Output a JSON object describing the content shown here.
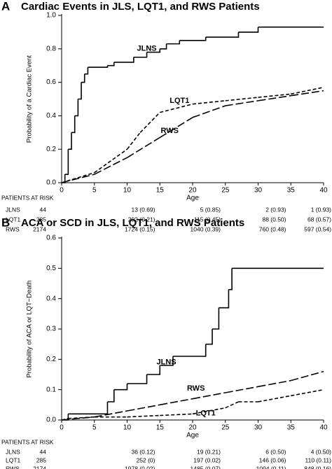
{
  "chart_data": [
    {
      "type": "line",
      "panel": "A",
      "title": "Cardiac Events in JLS, LQT1, and RWS Patients",
      "x_label": "Age",
      "y_label": "Probability of a Cardiac Event",
      "xlim": [
        0,
        40
      ],
      "xticks": [
        0,
        5,
        10,
        15,
        20,
        25,
        30,
        35,
        40
      ],
      "ylim": [
        0,
        1
      ],
      "yticks": [
        {
          "value": 0,
          "label": "0.0"
        },
        {
          "value": 0.2,
          "label": "0.2"
        },
        {
          "value": 0.4,
          "label": "0.4"
        },
        {
          "value": 0.6,
          "label": "0.6"
        },
        {
          "value": 0.8,
          "label": "0.8"
        },
        {
          "value": 1,
          "label": "1.0"
        }
      ],
      "series": [
        {
          "name": "JLNS",
          "color": "#000000",
          "line_style": "solid",
          "step": true,
          "x": [
            0,
            0.5,
            1,
            1.5,
            2,
            2.5,
            3,
            3.5,
            4,
            7,
            8,
            11,
            13,
            15,
            16,
            18,
            22,
            27,
            30,
            40
          ],
          "values": [
            0,
            0.05,
            0.2,
            0.3,
            0.4,
            0.5,
            0.6,
            0.65,
            0.69,
            0.7,
            0.72,
            0.75,
            0.78,
            0.8,
            0.83,
            0.85,
            0.87,
            0.9,
            0.93,
            0.93
          ]
        },
        {
          "name": "LQT1",
          "color": "#000000",
          "line_style": "dashed",
          "step": false,
          "x": [
            0,
            5,
            10,
            12,
            15,
            20,
            25,
            30,
            35,
            40
          ],
          "values": [
            0,
            0.06,
            0.2,
            0.3,
            0.42,
            0.47,
            0.49,
            0.51,
            0.53,
            0.57
          ]
        },
        {
          "name": "RWS",
          "color": "#000000",
          "line_style": "long-dashed",
          "step": false,
          "x": [
            0,
            5,
            10,
            15,
            20,
            25,
            30,
            35,
            40
          ],
          "values": [
            0,
            0.05,
            0.15,
            0.27,
            0.39,
            0.46,
            0.49,
            0.52,
            0.55
          ]
        }
      ],
      "risk_table": {
        "title": "PATIENTS AT RISK",
        "rows": [
          {
            "name": "JLNS",
            "n": 44,
            "entries": [
              "13 (0.69)",
              "5 (0.85)",
              "2 (0.93)",
              "1 (0.93)"
            ]
          },
          {
            "name": "LQT1",
            "n": 285,
            "entries": [
              "202 (0.21)",
              "115 (0.45)",
              "88 (0.50)",
              "68 (0.57)"
            ]
          },
          {
            "name": "RWS",
            "n": 2174,
            "entries": [
              "1724 (0.15)",
              "1040 (0.39)",
              "760 (0.48)",
              "597 (0.54)"
            ]
          }
        ]
      }
    },
    {
      "type": "line",
      "panel": "B",
      "title": "ACA or SCD in JLS, LQT1, and RWS Patients",
      "x_label": "Age",
      "y_label": "Probability of ACA or LQT−Death",
      "xlim": [
        0,
        40
      ],
      "xticks": [
        0,
        5,
        10,
        15,
        20,
        25,
        30,
        35,
        40
      ],
      "ylim": [
        0,
        0.6
      ],
      "yticks": [
        {
          "value": 0,
          "label": "0.0"
        },
        0.1,
        0.2,
        0.3,
        0.4,
        0.5,
        0.6
      ],
      "series": [
        {
          "name": "JLNS",
          "color": "#000000",
          "line_style": "solid",
          "step": true,
          "x": [
            0,
            1,
            7,
            8,
            10,
            13,
            15,
            17,
            22,
            23,
            24,
            25.5,
            26,
            40
          ],
          "values": [
            0,
            0.02,
            0.06,
            0.1,
            0.12,
            0.15,
            0.18,
            0.21,
            0.25,
            0.3,
            0.37,
            0.43,
            0.5,
            0.5
          ]
        },
        {
          "name": "RWS",
          "color": "#000000",
          "line_style": "long-dashed",
          "step": false,
          "x": [
            0,
            5,
            10,
            15,
            20,
            25,
            30,
            35,
            40
          ],
          "values": [
            0,
            0.01,
            0.03,
            0.05,
            0.07,
            0.09,
            0.11,
            0.13,
            0.16
          ]
        },
        {
          "name": "LQT1",
          "color": "#000000",
          "line_style": "dashed",
          "step": false,
          "x": [
            0,
            1,
            5,
            10,
            15,
            20,
            25,
            27,
            30,
            35,
            40
          ],
          "values": [
            0,
            0.005,
            0.01,
            0.01,
            0.015,
            0.02,
            0.04,
            0.06,
            0.06,
            0.08,
            0.1
          ]
        }
      ],
      "risk_table": {
        "title": "PATIENTS AT RISK",
        "rows": [
          {
            "name": "JLNS",
            "n": 44,
            "entries": [
              "36 (0.12)",
              "19 (0.21)",
              "6 (0.50)",
              "4 (0.50)"
            ]
          },
          {
            "name": "LQT1",
            "n": 285,
            "entries": [
              "252 (0)",
              "197 (0.02)",
              "146 (0.06)",
              "110 (0.11)"
            ]
          },
          {
            "name": "RWS",
            "n": 2174,
            "entries": [
              "1978 (0.02)",
              "1485 (0.07)",
              "1094 (0.11)",
              "848 (0.16)"
            ]
          }
        ]
      }
    }
  ]
}
